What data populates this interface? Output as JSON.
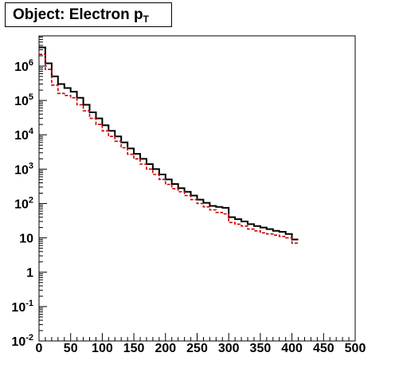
{
  "title": {
    "text": "Object: Electron p",
    "subscript": "T"
  },
  "chart_data": {
    "type": "step",
    "title": "Object: Electron pT",
    "xlim": [
      0,
      500
    ],
    "ylim_log10": [
      -2,
      6.88
    ],
    "y_scale": "log",
    "grid": false,
    "x_ticks": [
      "0",
      "50",
      "100",
      "150",
      "200",
      "250",
      "300",
      "350",
      "400",
      "450",
      "500"
    ],
    "y_ticks": [
      {
        "base": "10",
        "exp": "-2",
        "value": 0.01
      },
      {
        "base": "10",
        "exp": "-1",
        "value": 0.1
      },
      {
        "base": "1",
        "exp": "",
        "value": 1
      },
      {
        "base": "10",
        "exp": "",
        "value": 10
      },
      {
        "base": "10",
        "exp": "2",
        "value": 100
      },
      {
        "base": "10",
        "exp": "3",
        "value": 1000
      },
      {
        "base": "10",
        "exp": "4",
        "value": 10000
      },
      {
        "base": "10",
        "exp": "5",
        "value": 100000
      },
      {
        "base": "10",
        "exp": "6",
        "value": 1000000
      }
    ],
    "bin_width": 10,
    "bin_edges_start": 0,
    "series": [
      {
        "style": "solid",
        "color": "#000000",
        "values": [
          3500000,
          1200000,
          500000,
          300000,
          230000,
          180000,
          120000,
          75000,
          45000,
          30000,
          19000,
          13000,
          9000,
          6000,
          4000,
          2800,
          2000,
          1400,
          1000,
          700,
          500,
          370,
          280,
          220,
          170,
          130,
          105,
          85,
          80,
          75,
          40,
          35,
          30,
          25,
          22,
          20,
          18,
          16,
          15,
          13,
          9
        ]
      },
      {
        "style": "dashed",
        "color": "#cc0000",
        "values": [
          2200000,
          800000,
          280000,
          160000,
          140000,
          120000,
          75000,
          50000,
          30000,
          20000,
          13000,
          9000,
          6500,
          4200,
          2700,
          2000,
          1400,
          1000,
          700,
          500,
          360,
          270,
          220,
          170,
          130,
          100,
          80,
          65,
          55,
          50,
          28,
          25,
          22,
          18,
          16,
          14,
          13,
          12,
          11,
          10,
          7
        ]
      }
    ]
  }
}
